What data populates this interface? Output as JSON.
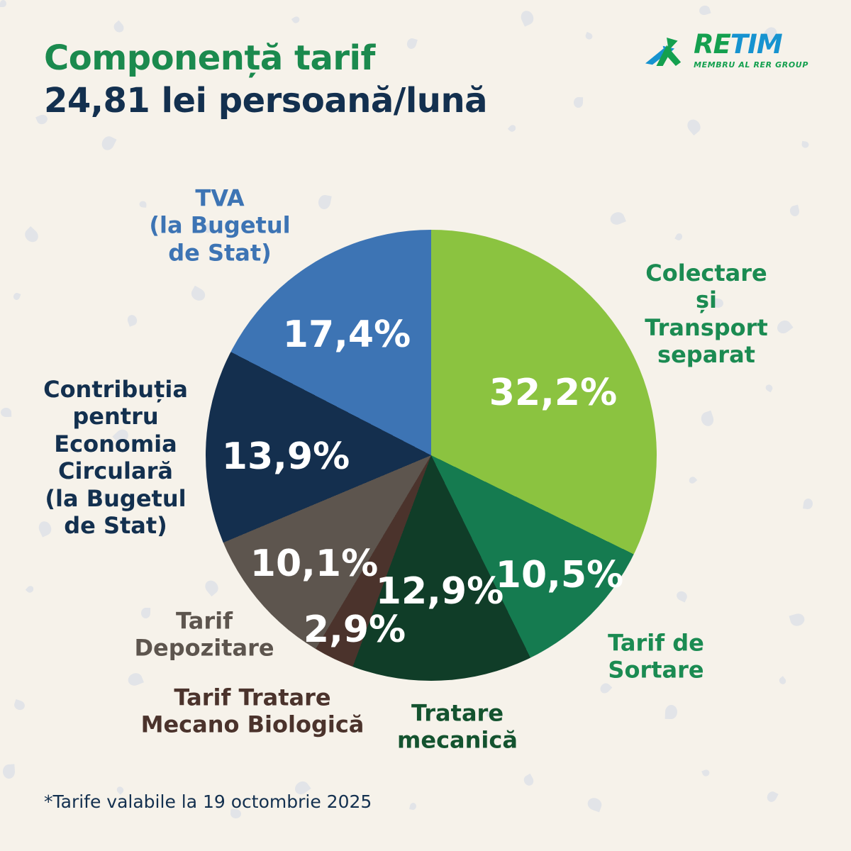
{
  "header": {
    "title_line1": "Componență tarif",
    "title_line2": "24,81 lei persoană/lună"
  },
  "logo": {
    "brand_part_green": "RE",
    "brand_part_blue": "TIM",
    "tagline": "MEMBRU AL RER GROUP",
    "green": "#14A04F",
    "blue": "#1693D0"
  },
  "labels": {
    "tva": "TVA\n(la Bugetul\nde Stat)",
    "colectare": "Colectare și\nTransport\nseparat",
    "contributia": "Contribuția\npentru\nEconomia\nCirculară\n(la Bugetul\nde Stat)",
    "depozitare": "Tarif\nDepozitare",
    "mecano": "Tarif Tratare\nMecano Biologică",
    "tratare": "Tratare\nmecanică",
    "sortare": "Tarif de\nSortare"
  },
  "footer": {
    "note": "*Tarife valabile la 19 octombrie 2025"
  },
  "colors": {
    "background": "#F6F2EA",
    "speckle": "#DEE2E8",
    "title_green": "#1B8A4E",
    "navy_text": "#13304F"
  },
  "chart_data": {
    "type": "pie",
    "title": "Componență tarif 24,81 lei persoană/lună",
    "start_angle_deg": 0,
    "direction": "clockwise",
    "legend_position": "around",
    "slices": [
      {
        "label": "Colectare și Transport separat",
        "value": 32.2,
        "display": "32,2%",
        "color": "#8BC340",
        "label_color": "#1B8B52"
      },
      {
        "label": "Tarif de Sortare",
        "value": 10.5,
        "display": "10,5%",
        "color": "#157B50",
        "label_color": "#1B8B52"
      },
      {
        "label": "Tratare mecanică",
        "value": 12.9,
        "display": "12,9%",
        "color": "#103D28",
        "label_color": "#14532F"
      },
      {
        "label": "Tarif Tratare Mecano Biologică",
        "value": 2.9,
        "display": "2,9%",
        "color": "#4B332C",
        "label_color": "#4B332C"
      },
      {
        "label": "Tarif Depozitare",
        "value": 10.1,
        "display": "10,1%",
        "color": "#5D554E",
        "label_color": "#5D554E"
      },
      {
        "label": "Contribuția pentru Economia Circulară (la Bugetul de Stat)",
        "value": 13.9,
        "display": "13,9%",
        "color": "#142F4E",
        "label_color": "#13304F"
      },
      {
        "label": "TVA (la Bugetul de Stat)",
        "value": 17.4,
        "display": "17,4%",
        "color": "#3D74B4",
        "label_color": "#3D74B4"
      }
    ]
  }
}
